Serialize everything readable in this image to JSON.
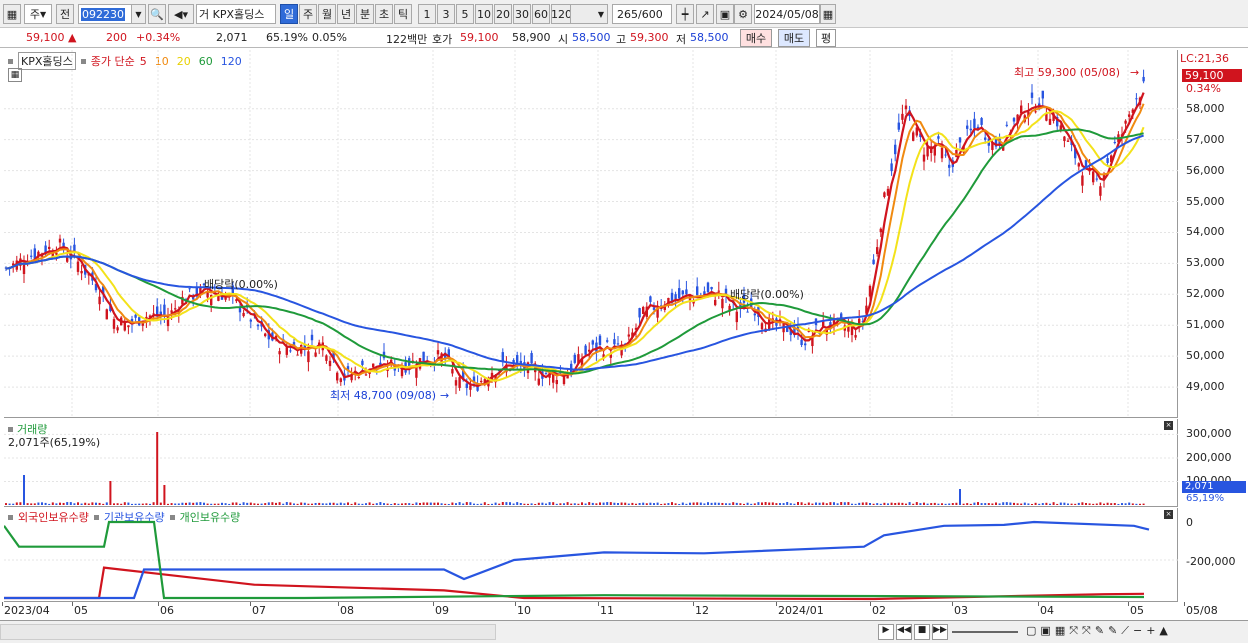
{
  "toolbar": {
    "mode": "주",
    "compare": "전",
    "code": "092230",
    "type_prefix": "거",
    "name": "KPX홀딩스",
    "periods": [
      "일",
      "주",
      "월",
      "년",
      "분",
      "초",
      "틱"
    ],
    "intervals": [
      "1",
      "3",
      "5",
      "10",
      "20",
      "30",
      "60",
      "120"
    ],
    "count": "265",
    "count_total": "/600",
    "date": "2024/05/08"
  },
  "info": {
    "price": "59,100",
    "change": "200",
    "change_pct": "+0.34%",
    "volume": "2,071",
    "vol_ratio": "65.19%",
    "turnover": "0.05%",
    "amount": "122백만",
    "quote_label": "호가",
    "ask": "59,100",
    "bid": "58,900",
    "open_label": "시",
    "open": "58,500",
    "high_label": "고",
    "high": "59,300",
    "low_label": "저",
    "low": "58,500",
    "buy": "매수",
    "sell": "매도",
    "avg": "평"
  },
  "price_panel": {
    "name": "KPX홀딩스",
    "ma_label": "종가 단순",
    "ma_periods": [
      "5",
      "10",
      "20",
      "60",
      "120"
    ],
    "ma_colors": [
      "#d0141e",
      "#f08a10",
      "#f3e21a",
      "#1f9a3a",
      "#2855e0"
    ],
    "lc": "LC:21,36",
    "cur_price": "59,100",
    "cur_pct": "0.34%",
    "high_note": "최고 59,300 (05/08)",
    "low_note": "최저 48,700 (09/08)",
    "div1": "배당락(0.00%)",
    "div2": "배당락(0.00%)",
    "ticks": [
      "58,000",
      "57,000",
      "56,000",
      "55,000",
      "54,000",
      "53,000",
      "52,000",
      "51,000",
      "50,000",
      "49,000"
    ]
  },
  "vol_panel": {
    "label": "거래량",
    "value": "2,071주(65,19%)",
    "ticks": [
      "300,000",
      "200,000",
      "100,000"
    ],
    "cur": "2,071",
    "cur_pct": "65,19%"
  },
  "hold_panel": {
    "labels": [
      "외국인보유수량",
      "기관보유수량",
      "개인보유수량"
    ],
    "ticks": [
      "0",
      "-200,000"
    ]
  },
  "date_axis": [
    "2023/04",
    "05",
    "06",
    "07",
    "08",
    "09",
    "10",
    "11",
    "12",
    "2024/01",
    "02",
    "03",
    "04",
    "05",
    "05/08"
  ]
}
